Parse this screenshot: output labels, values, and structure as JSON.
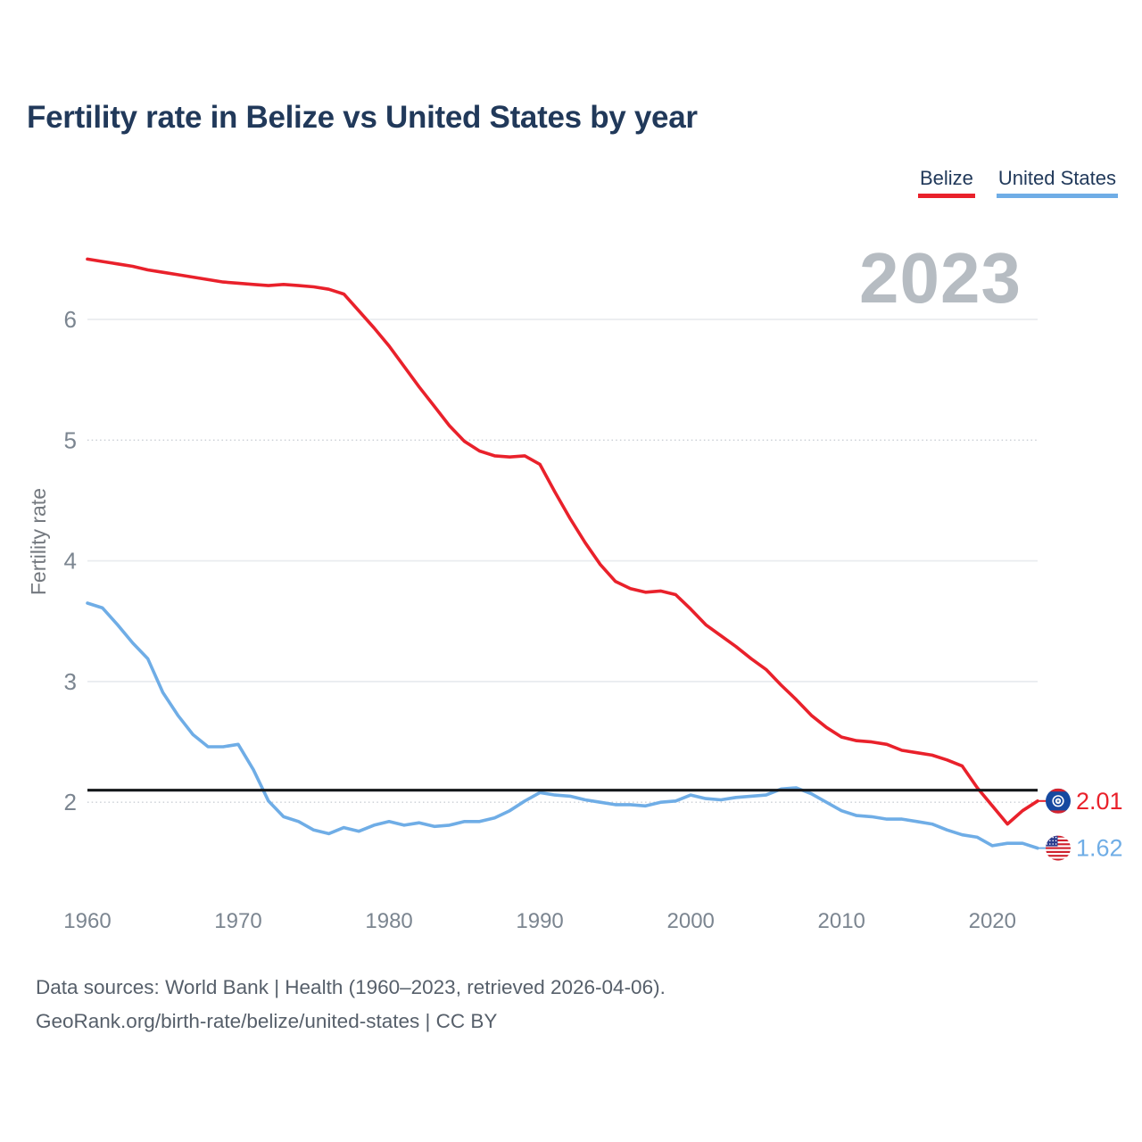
{
  "title": "Fertility rate in Belize vs United States by year",
  "watermark": "2023",
  "legend": [
    {
      "label": "Belize",
      "color": "#e9212b"
    },
    {
      "label": "United States",
      "color": "#6fade6"
    }
  ],
  "y_axis": {
    "label": "Fertility rate"
  },
  "end_labels": [
    {
      "series": "Belize",
      "value": "2.01",
      "flag": "belize-flag"
    },
    {
      "series": "United States",
      "value": "1.62",
      "flag": "us-flag"
    }
  ],
  "footer": {
    "line1": "Data sources: World Bank | Health (1960–2023, retrieved 2026-04-06).",
    "line2": "GeoRank.org/birth-rate/belize/united-states | CC BY"
  },
  "colors": {
    "belize_red": "#e9212b",
    "us_blue": "#6fade6",
    "title_navy": "#21395a",
    "axis_gray": "#7b8590",
    "watermark_gray": "#b6bcc2",
    "gridline": "#e9ecef",
    "reference_black": "#14171a"
  },
  "chart_data": {
    "type": "line",
    "title": "Fertility rate in Belize vs United States by year",
    "ylabel": "Fertility rate",
    "xlabel": "",
    "xlim": [
      1960,
      2023
    ],
    "ylim": [
      1.45,
      6.65
    ],
    "xticks": [
      1960,
      1970,
      1980,
      1990,
      2000,
      2010,
      2020
    ],
    "yticks": [
      2,
      3,
      4,
      5,
      6
    ],
    "grid": "horizontal",
    "legend_position": "top-right",
    "reference_line_y": 2.1,
    "x": [
      1960,
      1961,
      1962,
      1963,
      1964,
      1965,
      1966,
      1967,
      1968,
      1969,
      1970,
      1971,
      1972,
      1973,
      1974,
      1975,
      1976,
      1977,
      1978,
      1979,
      1980,
      1981,
      1982,
      1983,
      1984,
      1985,
      1986,
      1987,
      1988,
      1989,
      1990,
      1991,
      1992,
      1993,
      1994,
      1995,
      1996,
      1997,
      1998,
      1999,
      2000,
      2001,
      2002,
      2003,
      2004,
      2005,
      2006,
      2007,
      2008,
      2009,
      2010,
      2011,
      2012,
      2013,
      2014,
      2015,
      2016,
      2017,
      2018,
      2019,
      2020,
      2021,
      2022,
      2023
    ],
    "series": [
      {
        "name": "Belize",
        "id": "belize",
        "color": "#e9212b",
        "end_value": "2.01",
        "values": [
          6.5,
          6.48,
          6.46,
          6.44,
          6.41,
          6.39,
          6.37,
          6.35,
          6.33,
          6.31,
          6.3,
          6.29,
          6.28,
          6.29,
          6.28,
          6.27,
          6.25,
          6.21,
          6.07,
          5.93,
          5.78,
          5.61,
          5.44,
          5.28,
          5.12,
          4.99,
          4.91,
          4.87,
          4.86,
          4.87,
          4.8,
          4.57,
          4.35,
          4.15,
          3.97,
          3.83,
          3.77,
          3.74,
          3.75,
          3.72,
          3.6,
          3.47,
          3.38,
          3.29,
          3.19,
          3.1,
          2.97,
          2.85,
          2.72,
          2.62,
          2.54,
          2.51,
          2.5,
          2.48,
          2.43,
          2.41,
          2.39,
          2.35,
          2.3,
          2.12,
          1.97,
          1.82,
          1.93,
          2.01
        ]
      },
      {
        "name": "United States",
        "id": "united-states",
        "color": "#6fade6",
        "end_value": "1.62",
        "values": [
          3.65,
          3.61,
          3.47,
          3.32,
          3.19,
          2.91,
          2.72,
          2.56,
          2.46,
          2.46,
          2.48,
          2.27,
          2.01,
          1.88,
          1.84,
          1.77,
          1.74,
          1.79,
          1.76,
          1.81,
          1.84,
          1.81,
          1.83,
          1.8,
          1.81,
          1.84,
          1.84,
          1.87,
          1.93,
          2.01,
          2.08,
          2.06,
          2.05,
          2.02,
          2.0,
          1.98,
          1.98,
          1.97,
          2.0,
          2.01,
          2.06,
          2.03,
          2.02,
          2.04,
          2.05,
          2.06,
          2.11,
          2.12,
          2.07,
          2.0,
          1.93,
          1.89,
          1.88,
          1.86,
          1.86,
          1.84,
          1.82,
          1.77,
          1.73,
          1.71,
          1.64,
          1.66,
          1.66,
          1.62
        ]
      }
    ]
  }
}
